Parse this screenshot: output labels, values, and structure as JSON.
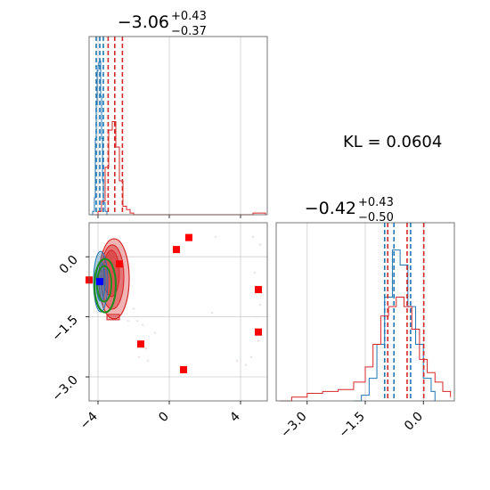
{
  "chart_data": [
    {
      "panel": "top-left",
      "type": "histogram",
      "title": {
        "value": "−3.06",
        "plus": "+0.43",
        "minus": "−0.37"
      },
      "xlim": [
        -4.5,
        5.5
      ],
      "grid": true,
      "colors": {
        "blue": "#1f77b4",
        "red": "#d62728"
      },
      "ticks": [
        -4,
        0,
        4
      ],
      "series": [
        {
          "color": "blue",
          "values": [
            [
              -4.4,
              0.0
            ],
            [
              -4.3,
              0.02
            ],
            [
              -4.2,
              0.1
            ],
            [
              -4.15,
              0.45
            ],
            [
              -4.1,
              0.65
            ],
            [
              -4.05,
              0.85
            ],
            [
              -4.0,
              0.88
            ],
            [
              -3.95,
              0.9
            ],
            [
              -3.9,
              0.91
            ],
            [
              -3.85,
              0.7
            ],
            [
              -3.8,
              0.45
            ],
            [
              -3.75,
              0.2
            ],
            [
              -3.7,
              0.07
            ],
            [
              -3.6,
              0.02
            ],
            [
              -3.5,
              0.0
            ]
          ],
          "median": -3.9,
          "quantiles": [
            -4.1,
            -3.7
          ]
        },
        {
          "color": "red",
          "values": [
            [
              -4.2,
              0.0
            ],
            [
              -4.0,
              0.02
            ],
            [
              -3.8,
              0.08
            ],
            [
              -3.6,
              0.28
            ],
            [
              -3.4,
              0.5
            ],
            [
              -3.2,
              0.55
            ],
            [
              -3.0,
              0.4
            ],
            [
              -2.8,
              0.2
            ],
            [
              -2.6,
              0.05
            ],
            [
              -2.4,
              0.03
            ],
            [
              -2.2,
              0.01
            ],
            [
              -2.0,
              0.0
            ],
            [
              4.7,
              0.01
            ],
            [
              5.0,
              0.01
            ],
            [
              5.4,
              0.0
            ]
          ],
          "median": -3.06,
          "quantiles": [
            -3.43,
            -2.63
          ]
        }
      ]
    },
    {
      "panel": "bottom-left",
      "type": "scatter",
      "xlim": [
        -4.5,
        5.5
      ],
      "ylim": [
        -3.6,
        0.85
      ],
      "grid": true,
      "x_ticks": [
        -4,
        0,
        4
      ],
      "y_ticks": [
        0.0,
        -1.5,
        -3.0
      ],
      "red_squares": [
        [
          0.4,
          0.18
        ],
        [
          1.1,
          0.48
        ],
        [
          -2.8,
          -0.18
        ],
        [
          5.0,
          -0.82
        ],
        [
          5.0,
          -1.88
        ],
        [
          -1.6,
          -2.18
        ],
        [
          0.8,
          -2.82
        ],
        [
          -4.5,
          -0.58
        ]
      ],
      "blue_square": [
        -3.9,
        -0.62
      ]
    },
    {
      "panel": "bottom-right",
      "type": "histogram",
      "title": {
        "value": "−0.42",
        "plus": "+0.43",
        "minus": "−0.50"
      },
      "xlim": [
        -3.8,
        0.8
      ],
      "grid": true,
      "ticks": [
        -3.0,
        -1.5,
        0.0
      ],
      "series": [
        {
          "color": "blue",
          "values": [
            [
              -1.8,
              0.0
            ],
            [
              -1.6,
              0.03
            ],
            [
              -1.4,
              0.12
            ],
            [
              -1.2,
              0.3
            ],
            [
              -1.0,
              0.55
            ],
            [
              -0.8,
              0.8
            ],
            [
              -0.6,
              0.72
            ],
            [
              -0.4,
              0.5
            ],
            [
              -0.2,
              0.3
            ],
            [
              0.0,
              0.12
            ],
            [
              0.2,
              0.05
            ],
            [
              0.3,
              0.0
            ]
          ],
          "median": -0.76,
          "quantiles": [
            -1.0,
            -0.33
          ]
        },
        {
          "color": "red",
          "values": [
            [
              -3.7,
              0.0
            ],
            [
              -3.4,
              0.02
            ],
            [
              -3.0,
              0.04
            ],
            [
              -2.6,
              0.05
            ],
            [
              -2.2,
              0.06
            ],
            [
              -1.8,
              0.1
            ],
            [
              -1.5,
              0.18
            ],
            [
              -1.3,
              0.3
            ],
            [
              -1.1,
              0.45
            ],
            [
              -0.9,
              0.5
            ],
            [
              -0.7,
              0.55
            ],
            [
              -0.5,
              0.5
            ],
            [
              -0.3,
              0.38
            ],
            [
              -0.1,
              0.22
            ],
            [
              0.1,
              0.15
            ],
            [
              0.3,
              0.1
            ],
            [
              0.5,
              0.05
            ],
            [
              0.7,
              0.02
            ]
          ],
          "median": -0.42,
          "quantiles": [
            -0.92,
            0.01
          ]
        }
      ]
    }
  ],
  "kl_label": "KL = 0.0604"
}
